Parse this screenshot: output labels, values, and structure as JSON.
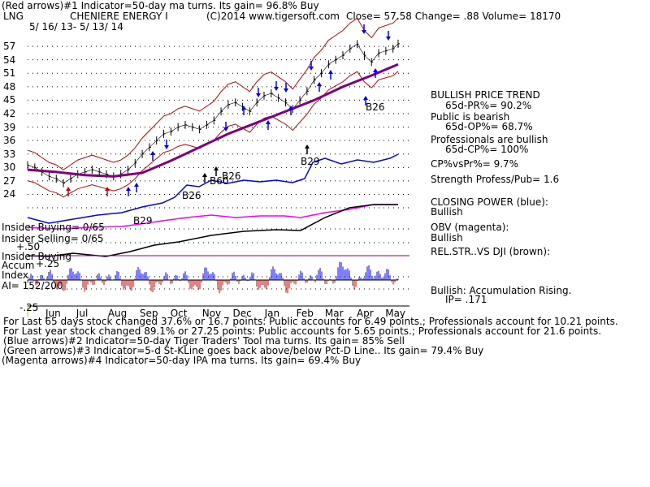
{
  "header": {
    "line1": "(Red arrows)#1 Indicator=50-day ma turns. Its gain= 96.8% Buy",
    "symbol": "LNG",
    "company": "CHENIERE ENERGY I",
    "copyright": "(C)2014 www.tigersoft.com",
    "quote": "Close= 57.58 Change= .88 Volume= 18170",
    "date_range": "5/ 16/ 13- 5/ 13/ 14"
  },
  "right_panel": [
    {
      "text": "BULLISH PRICE TREND",
      "indent": false
    },
    {
      "text": "65d-PR%= 90.2%",
      "indent": true
    },
    {
      "text": "Public is bearish",
      "indent": false
    },
    {
      "text": "65d-OP%= 68.7%",
      "indent": true
    },
    {
      "text": "Professionals are bullish",
      "indent": false
    },
    {
      "text": "65d-CP%= 100%",
      "indent": true
    },
    {
      "text": "CP%vsPr%= 9.7%",
      "indent": false
    },
    {
      "text": "Strength Profess/Pub= 1.6",
      "indent": false
    },
    {
      "text": "CLOSING POWER (blue):",
      "indent": false
    },
    {
      "text": "Bullish",
      "indent": false
    },
    {
      "text": "OBV (magenta):",
      "indent": false
    },
    {
      "text": "Bullish",
      "indent": false
    },
    {
      "text": "REL.STR..VS DJI (brown):",
      "indent": false
    },
    {
      "text": "Bullish: Accumulation Rising.",
      "indent": false
    },
    {
      "text": "IP= .171",
      "indent": true
    }
  ],
  "left_labels": {
    "insider_buying": "Insider Buying= 0/65",
    "insider_selling": "Insider Selling= 0/65",
    "insider_buying2": "Insider Buying",
    "accum": "Accum",
    "index": "Index",
    "ai": "AI= 152/200",
    "plus50": "+.50",
    "plus25": "+.25",
    "minus25": "-.25"
  },
  "annotations": {
    "b26_a": "B26",
    "b26_b": "B26",
    "b26_c": "B26",
    "b29_a": "B29",
    "b29_b": "B29",
    "b60": "B60"
  },
  "footer": [
    "For Last 65 days stock changed  37.6% or  16.7 points:  Public accounts for  6.49 points.;  Professionals account for  10.21 points.",
    "For Last year stock changed  89.1% or  27.25 points:  Public accounts for  5.65 points.;  Professionals account for  21.6 points.",
    "(Blue arrows)#2 Indicator=50-day Tiger Traders' Tool ma turns. Its gain= 85% Sell",
    "(Green arrows)#3 Indicator=5-d St-KLine goes back above/below Pct-D Line.. Its gain= 79.4% Buy",
    "(Magenta arrows)#4 Indicator=50-day IPA ma turns. Its gain= 69.4% Buy"
  ],
  "colors": {
    "price": "#000000",
    "band": "#cc0000",
    "ma50": "#800080",
    "closing_power": "#0000ff",
    "obv": "#ff00ff",
    "relstr": "#000000",
    "accum": "#0000ff",
    "accum_neg": "#cc0000",
    "grid": "#000000"
  },
  "chart_data": {
    "type": "line",
    "ylim": [
      23,
      61
    ],
    "y_ticks": [
      57,
      54,
      51,
      48,
      45,
      42,
      39,
      36,
      33,
      30,
      27,
      24
    ],
    "x_ticks": [
      "Jun",
      "Jul",
      "Aug",
      "Sep",
      "Oct",
      "Nov",
      "Dec",
      "Jan",
      "Feb",
      "Mar",
      "Apr",
      "May"
    ],
    "series": [
      {
        "name": "Price",
        "x": [
          "2013-05-16",
          "2013-05-23",
          "2013-05-30",
          "2013-06-06",
          "2013-06-13",
          "2013-06-20",
          "2013-06-27",
          "2013-07-04",
          "2013-07-11",
          "2013-07-18",
          "2013-07-25",
          "2013-08-01",
          "2013-08-08",
          "2013-08-15",
          "2013-08-22",
          "2013-08-29",
          "2013-09-05",
          "2013-09-12",
          "2013-09-19",
          "2013-09-26",
          "2013-10-03",
          "2013-10-10",
          "2013-10-17",
          "2013-10-24",
          "2013-10-31",
          "2013-11-07",
          "2013-11-14",
          "2013-11-21",
          "2013-11-28",
          "2013-12-05",
          "2013-12-12",
          "2013-12-19",
          "2013-12-26",
          "2014-01-02",
          "2014-01-09",
          "2014-01-16",
          "2014-01-23",
          "2014-01-30",
          "2014-02-06",
          "2014-02-13",
          "2014-02-20",
          "2014-02-27",
          "2014-03-06",
          "2014-03-13",
          "2014-03-20",
          "2014-03-27",
          "2014-04-03",
          "2014-04-10",
          "2014-04-17",
          "2014-04-24",
          "2014-05-01",
          "2014-05-08",
          "2014-05-13"
        ],
        "values": [
          30.5,
          30.0,
          29.0,
          28.0,
          27.5,
          26.5,
          27.5,
          28.5,
          29.0,
          29.5,
          29.0,
          28.5,
          28.0,
          28.5,
          29.5,
          31.0,
          33.0,
          34.5,
          36.0,
          37.5,
          38.0,
          39.0,
          39.5,
          39.0,
          38.5,
          39.5,
          40.5,
          42.5,
          44.0,
          44.5,
          43.5,
          42.5,
          44.5,
          46.0,
          46.5,
          45.5,
          44.5,
          43.0,
          45.0,
          47.0,
          49.5,
          51.0,
          53.0,
          54.0,
          55.0,
          56.5,
          57.5,
          55.0,
          53.5,
          55.5,
          56.0,
          56.5,
          57.58
        ]
      },
      {
        "name": "",
        "x": [
          "2013-05-16",
          "2013-06-13",
          "2013-07-11",
          "2013-08-08",
          "2013-09-05",
          "2013-10-03",
          "2013-10-31",
          "2013-11-28",
          "2013-12-26",
          "2014-01-23",
          "2014-02-20",
          "2014-03-20",
          "2014-04-17",
          "2014-05-13"
        ],
        "values": [
          29.5,
          29.0,
          28.3,
          28.0,
          28.8,
          31.5,
          34.5,
          37.5,
          40.0,
          42.5,
          45.0,
          48.0,
          50.5,
          53.0
        ]
      }
    ]
  }
}
